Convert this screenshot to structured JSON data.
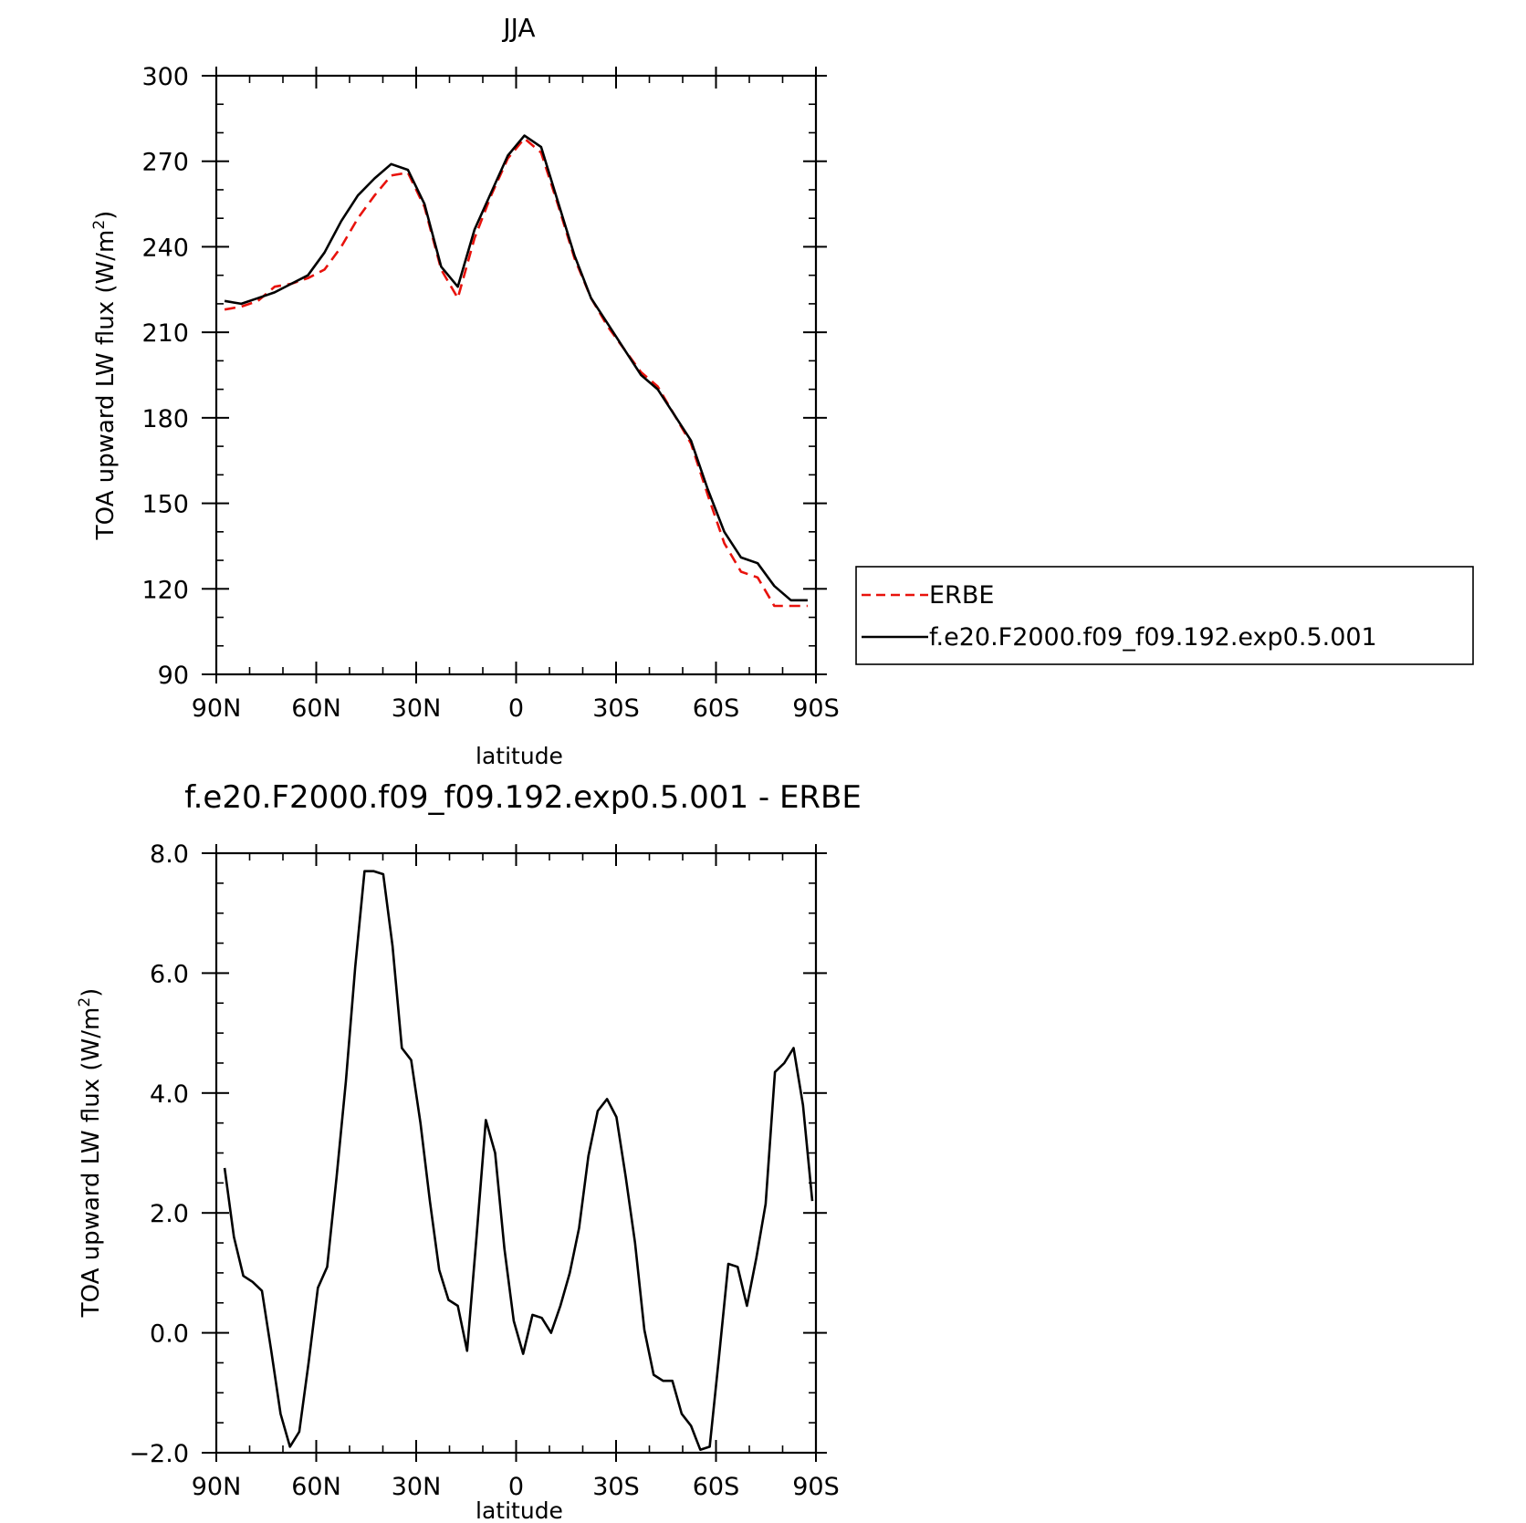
{
  "colors": {
    "erbe": "#e8120c",
    "model": "#000000",
    "axis": "#000000"
  },
  "chart_data": [
    {
      "type": "line",
      "title": "JJA",
      "xlabel": "latitude",
      "ylabel_main": "TOA upward LW flux (W/m",
      "ylabel_sup": "2",
      "ylabel_tail": ")",
      "xlim": [
        90,
        -90
      ],
      "ylim": [
        90,
        300
      ],
      "x_ticks": [
        {
          "value": 90,
          "label": "90N"
        },
        {
          "value": 60,
          "label": "60N"
        },
        {
          "value": 30,
          "label": "30N"
        },
        {
          "value": 0,
          "label": "0"
        },
        {
          "value": -30,
          "label": "30S"
        },
        {
          "value": -60,
          "label": "60S"
        },
        {
          "value": -90,
          "label": "90S"
        }
      ],
      "y_ticks": [
        {
          "value": 300,
          "label": "300"
        },
        {
          "value": 270,
          "label": "270"
        },
        {
          "value": 240,
          "label": "240"
        },
        {
          "value": 210,
          "label": "210"
        },
        {
          "value": 180,
          "label": "180"
        },
        {
          "value": 150,
          "label": "150"
        },
        {
          "value": 120,
          "label": "120"
        },
        {
          "value": 90,
          "label": "90"
        }
      ],
      "legend": {
        "placement": "right",
        "entries": [
          {
            "label": "ERBE",
            "series": 0
          },
          {
            "label": "f.e20.F2000.f09_f09.192.exp0.5.001",
            "series": 1
          }
        ]
      },
      "series": [
        {
          "name": "ERBE",
          "style": "dashed",
          "x": [
            87.5,
            82.5,
            77.5,
            72.5,
            67.5,
            62.5,
            57.5,
            52.5,
            47.5,
            42.5,
            37.5,
            32.5,
            27.5,
            22.5,
            17.5,
            12.5,
            7.5,
            2.5,
            -2.5,
            -7.5,
            -12.5,
            -17.5,
            -22.5,
            -27.5,
            -32.5,
            -37.5,
            -42.5,
            -47.5,
            -52.5,
            -57.5,
            -62.5,
            -67.5,
            -72.5,
            -77.5,
            -82.5,
            -87.5
          ],
          "y": [
            218,
            219,
            221,
            226,
            227,
            229,
            232,
            240,
            250,
            258,
            265,
            266,
            254,
            232,
            222,
            243,
            258,
            271,
            278,
            273,
            255,
            236,
            222,
            212,
            204,
            196,
            191,
            181,
            171,
            153,
            136,
            126,
            124,
            114,
            114,
            114
          ]
        },
        {
          "name": "f.e20.F2000.f09_f09.192.exp0.5.001",
          "style": "solid",
          "x": [
            87.5,
            82.5,
            77.5,
            72.5,
            67.5,
            62.5,
            57.5,
            52.5,
            47.5,
            42.5,
            37.5,
            32.5,
            27.5,
            22.5,
            17.5,
            12.5,
            7.5,
            2.5,
            -2.5,
            -7.5,
            -12.5,
            -17.5,
            -22.5,
            -27.5,
            -32.5,
            -37.5,
            -42.5,
            -47.5,
            -52.5,
            -57.5,
            -62.5,
            -67.5,
            -72.5,
            -77.5,
            -82.5,
            -87.5
          ],
          "y": [
            221,
            220,
            222,
            224,
            227,
            230,
            238,
            249,
            258,
            264,
            269,
            267,
            255,
            233,
            226,
            246,
            259,
            272,
            279,
            275,
            256,
            237,
            222,
            213,
            204,
            195,
            190,
            181,
            172,
            155,
            140,
            131,
            129,
            121,
            116,
            116
          ]
        }
      ]
    },
    {
      "type": "line",
      "title": "f.e20.F2000.f09_f09.192.exp0.5.001 - ERBE",
      "xlabel": "latitude",
      "ylabel_main": "TOA upward LW flux (W/m",
      "ylabel_sup": "2",
      "ylabel_tail": ")",
      "xlim": [
        90,
        -90
      ],
      "ylim": [
        -2,
        8
      ],
      "x_ticks": [
        {
          "value": 90,
          "label": "90N"
        },
        {
          "value": 60,
          "label": "60N"
        },
        {
          "value": 30,
          "label": "30N"
        },
        {
          "value": 0,
          "label": "0"
        },
        {
          "value": -30,
          "label": "30S"
        },
        {
          "value": -60,
          "label": "60S"
        },
        {
          "value": -90,
          "label": "90S"
        }
      ],
      "y_ticks": [
        {
          "value": 8,
          "label": "8.0"
        },
        {
          "value": 6,
          "label": "6.0"
        },
        {
          "value": 4,
          "label": "4.0"
        },
        {
          "value": 2,
          "label": "2.0"
        },
        {
          "value": 0,
          "label": "0.0"
        },
        {
          "value": -2,
          "label": "−2.0"
        }
      ],
      "series": [
        {
          "style": "solid",
          "x": [
            87.5,
            84.7,
            81.9,
            79.1,
            76.3,
            73.5,
            70.7,
            67.9,
            65.1,
            62.3,
            59.5,
            56.7,
            53.9,
            51.1,
            48.3,
            45.5,
            42.7,
            39.9,
            37.1,
            34.3,
            31.5,
            28.7,
            25.9,
            23.1,
            20.3,
            17.5,
            14.7,
            11.9,
            9.1,
            6.3,
            3.5,
            0.7,
            -2.1,
            -4.9,
            -7.7,
            -10.5,
            -13.3,
            -16.1,
            -18.9,
            -21.7,
            -24.5,
            -27.3,
            -30.1,
            -32.9,
            -35.7,
            -38.5,
            -41.3,
            -44.1,
            -46.9,
            -49.7,
            -52.5,
            -55.3,
            -58.1,
            -60.9,
            -63.7,
            -66.5,
            -69.3,
            -72.1,
            -74.9,
            -77.7,
            -80.5,
            -83.3,
            -86.1,
            -88.9
          ],
          "y": [
            2.75,
            1.6,
            0.95,
            0.85,
            0.7,
            -0.3,
            -1.35,
            -1.9,
            -1.65,
            -0.5,
            0.75,
            1.1,
            2.6,
            4.2,
            6.1,
            7.7,
            7.7,
            7.65,
            6.45,
            4.75,
            4.55,
            3.5,
            2.2,
            1.05,
            0.55,
            0.45,
            -0.3,
            1.6,
            3.55,
            3.0,
            1.4,
            0.2,
            -0.35,
            0.3,
            0.25,
            0.0,
            0.45,
            1.0,
            1.75,
            2.95,
            3.7,
            3.9,
            3.6,
            2.6,
            1.5,
            0.05,
            -0.7,
            -0.8,
            -0.8,
            -1.35,
            -1.55,
            -1.95,
            -1.9,
            -0.4,
            1.15,
            1.1,
            0.45,
            1.25,
            2.15,
            4.35,
            4.5,
            4.75,
            3.8,
            2.2
          ]
        }
      ]
    }
  ]
}
